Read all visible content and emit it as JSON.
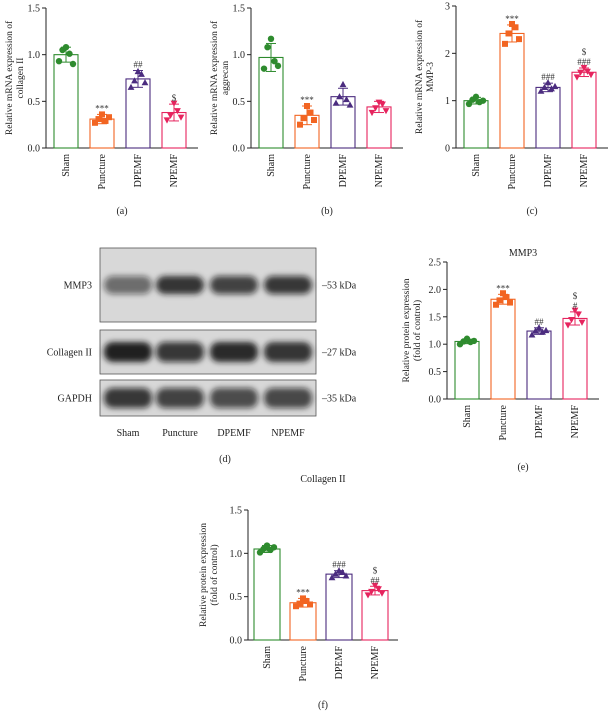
{
  "colors": {
    "sham": "#2e8b2e",
    "puncture": "#f26522",
    "dpemf": "#4b2c7f",
    "npemf": "#e6245e"
  },
  "chart_data": [
    {
      "type": "bar",
      "panel": "(a)",
      "title": "",
      "categories": [
        "Sham",
        "Puncture",
        "DPEMF",
        "NPEMF"
      ],
      "ylabel": "Relative mRNA expression of collagen II",
      "ylim": [
        0,
        1.5
      ],
      "yticks": [
        "0.0",
        "0.5",
        "1.0",
        "1.5"
      ],
      "series": [
        {
          "values": [
            1.0,
            0.31,
            0.74,
            0.38
          ],
          "errors": [
            0.08,
            0.05,
            0.09,
            0.09
          ],
          "points": [
            [
              0.93,
              1.05,
              1.08,
              1.01,
              0.9
            ],
            [
              0.27,
              0.31,
              0.36,
              0.29,
              0.33
            ],
            [
              0.65,
              0.72,
              0.82,
              0.79,
              0.7
            ],
            [
              0.3,
              0.35,
              0.48,
              0.4,
              0.33
            ]
          ],
          "annotations": [
            "",
            "***",
            "##",
            "$"
          ]
        }
      ]
    },
    {
      "type": "bar",
      "panel": "(b)",
      "title": "",
      "categories": [
        "Sham",
        "Puncture",
        "DPEMF",
        "NPEMF"
      ],
      "ylabel": "Relative mRNA expression of aggrecan",
      "ylim": [
        0,
        1.5
      ],
      "yticks": [
        "0.0",
        "0.5",
        "1.0",
        "1.5"
      ],
      "series": [
        {
          "values": [
            0.97,
            0.35,
            0.55,
            0.44
          ],
          "errors": [
            0.15,
            0.1,
            0.09,
            0.06
          ],
          "points": [
            [
              0.85,
              1.08,
              1.17,
              0.93,
              0.88
            ],
            [
              0.25,
              0.32,
              0.45,
              0.38,
              0.3
            ],
            [
              0.48,
              0.55,
              0.68,
              0.52,
              0.46
            ],
            [
              0.38,
              0.43,
              0.49,
              0.47,
              0.4
            ]
          ],
          "annotations": [
            "",
            "***",
            "",
            ""
          ]
        }
      ]
    },
    {
      "type": "bar",
      "panel": "(c)",
      "title": "",
      "categories": [
        "Sham",
        "Puncture",
        "DPEMF",
        "NPEMF"
      ],
      "ylabel": "Relative mRNA expression of MMP-3",
      "ylim": [
        0,
        3
      ],
      "yticks": [
        "0",
        "1",
        "2",
        "3"
      ],
      "series": [
        {
          "values": [
            1.0,
            2.42,
            1.28,
            1.6
          ],
          "errors": [
            0.07,
            0.18,
            0.09,
            0.09
          ],
          "points": [
            [
              0.93,
              1.02,
              1.08,
              0.97,
              1.0
            ],
            [
              2.2,
              2.42,
              2.62,
              2.55,
              2.3
            ],
            [
              1.2,
              1.28,
              1.38,
              1.25,
              1.3
            ],
            [
              1.5,
              1.6,
              1.7,
              1.62,
              1.55
            ]
          ],
          "annotations": [
            "",
            "***",
            "###",
            "$|###"
          ]
        }
      ]
    },
    {
      "type": "bar",
      "panel": "(e)",
      "title": "MMP3",
      "categories": [
        "Sham",
        "Puncture",
        "DPEMF",
        "NPEMF"
      ],
      "ylabel": "Relative protein expression (fold of control)",
      "ylim": [
        0,
        2.5
      ],
      "yticks": [
        "0.0",
        "0.5",
        "1.0",
        "1.5",
        "2.0",
        "2.5"
      ],
      "series": [
        {
          "values": [
            1.05,
            1.82,
            1.24,
            1.47
          ],
          "errors": [
            0.04,
            0.09,
            0.06,
            0.12
          ],
          "points": [
            [
              1.0,
              1.05,
              1.1,
              1.04,
              1.06
            ],
            [
              1.72,
              1.8,
              1.93,
              1.86,
              1.76
            ],
            [
              1.17,
              1.24,
              1.3,
              1.22,
              1.25
            ],
            [
              1.35,
              1.45,
              1.62,
              1.55,
              1.4
            ]
          ],
          "annotations": [
            "",
            "***",
            "##",
            "$|#"
          ]
        }
      ]
    },
    {
      "type": "bar",
      "panel": "(f)",
      "title": "Collagen II",
      "categories": [
        "Sham",
        "Puncture",
        "DPEMF",
        "NPEMF"
      ],
      "ylabel": "Relative protein expression (fold of control)",
      "ylim": [
        0,
        1.5
      ],
      "yticks": [
        "0.0",
        "0.5",
        "1.0",
        "1.5"
      ],
      "series": [
        {
          "values": [
            1.05,
            0.43,
            0.76,
            0.57
          ],
          "errors": [
            0.04,
            0.05,
            0.04,
            0.05
          ],
          "points": [
            [
              1.01,
              1.05,
              1.09,
              1.04,
              1.07
            ],
            [
              0.39,
              0.42,
              0.48,
              0.45,
              0.41
            ],
            [
              0.72,
              0.76,
              0.8,
              0.78,
              0.74
            ],
            [
              0.52,
              0.56,
              0.63,
              0.59,
              0.54
            ]
          ],
          "annotations": [
            "",
            "***",
            "###",
            "$|##"
          ]
        }
      ]
    }
  ],
  "blot": {
    "panel": "(d)",
    "rows": [
      {
        "name": "MMP3",
        "kda": "–53 kDa"
      },
      {
        "name": "Collagen II",
        "kda": "–27 kDa"
      },
      {
        "name": "GAPDH",
        "kda": "–35 kDa"
      }
    ],
    "lanes": [
      "Sham",
      "Puncture",
      "DPEMF",
      "NPEMF"
    ]
  }
}
